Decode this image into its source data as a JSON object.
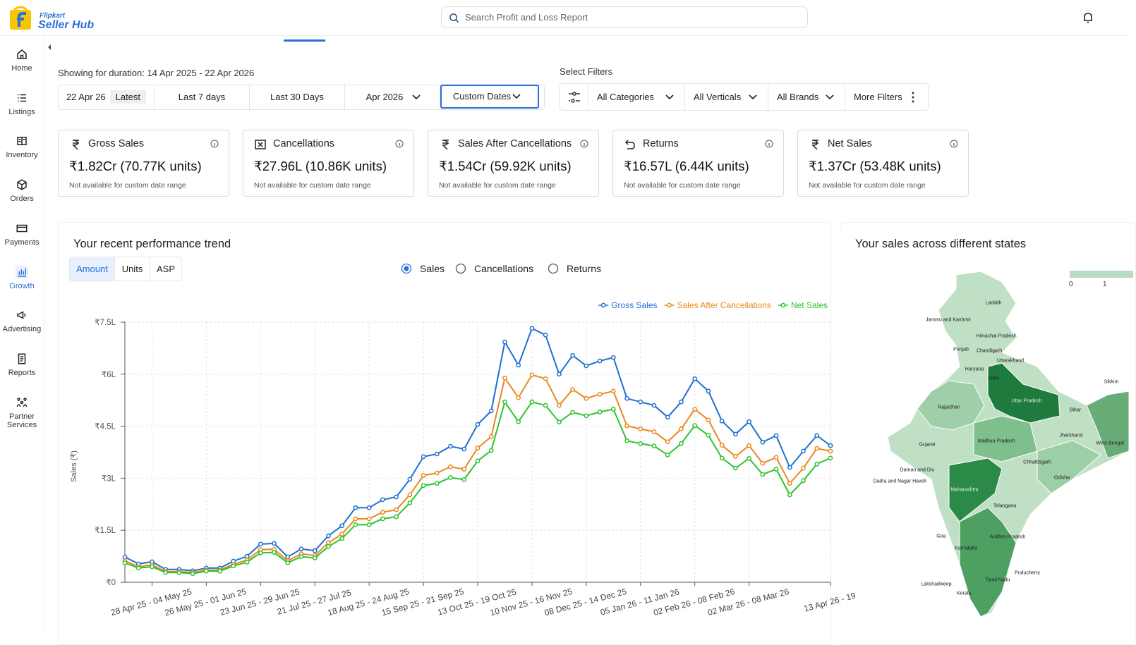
{
  "header": {
    "logo_top": "Flipkart",
    "logo_bottom": "Seller Hub",
    "search_placeholder": "Search Profit and Loss Report"
  },
  "sidebar": {
    "items": [
      "Home",
      "Listings",
      "Inventory",
      "Orders",
      "Payments",
      "Growth",
      "Advertising",
      "Reports",
      "Partner Services"
    ],
    "active": "Growth"
  },
  "duration": "Showing for duration: 14 Apr 2025 - 22 Apr 2026",
  "date_tabs": {
    "first": {
      "date": "22 Apr 26",
      "badge": "Latest"
    },
    "items": [
      "Last 7 days",
      "Last 30 Days",
      "Apr 2026",
      "Custom Dates"
    ],
    "active": "Custom Dates"
  },
  "filters": {
    "title": "Select Filters",
    "items": [
      "All Categories",
      "All Verticals",
      "All Brands",
      "More Filters"
    ]
  },
  "cards": [
    {
      "title": "Gross Sales",
      "value": "₹1.82Cr (70.77K units)",
      "note": "Not available for custom date range"
    },
    {
      "title": "Cancellations",
      "value": "₹27.96L (10.86K units)",
      "note": "Not available for custom date range"
    },
    {
      "title": "Sales After Cancellations",
      "value": "₹1.54Cr (59.92K units)",
      "note": "Not available for custom date range"
    },
    {
      "title": "Returns",
      "value": "₹16.57L (6.44K units)",
      "note": "Not available for custom date range"
    },
    {
      "title": "Net Sales",
      "value": "₹1.37Cr (53.48K units)",
      "note": "Not available for custom date range"
    }
  ],
  "trend": {
    "title": "Your recent performance trend",
    "toggles": [
      "Amount",
      "Units",
      "ASP"
    ],
    "active_toggle": "Amount",
    "radios": [
      "Sales",
      "Cancellations",
      "Returns"
    ],
    "selected_radio": "Sales"
  },
  "chart_data": {
    "type": "line",
    "y_label": "Sales (₹)",
    "categories": [
      null,
      null,
      "28 Apr 25 - 04 May 25",
      null,
      null,
      null,
      "26 May 25 - 01 Jun 25",
      null,
      null,
      null,
      "23 Jun 25 - 29 Jun 25",
      null,
      null,
      null,
      "21 Jul 25 - 27 Jul 25",
      null,
      null,
      null,
      "18 Aug 25 - 24 Aug 25",
      null,
      null,
      null,
      "15 Sep 25 - 21 Sep 25",
      null,
      null,
      null,
      "13 Oct 25 - 19 Oct 25",
      null,
      null,
      null,
      "10 Nov 25 - 16 Nov 25",
      null,
      null,
      null,
      "08 Dec 25 - 14 Dec 25",
      null,
      null,
      null,
      "05 Jan 26 - 11 Jan 26",
      null,
      null,
      null,
      "02 Feb 26 - 08 Feb 26",
      null,
      null,
      null,
      "02 Mar 26 - 08 Mar 26",
      null,
      null,
      null,
      null,
      null,
      "13 Apr 26 - 19"
    ],
    "series": [
      {
        "name": "Gross Sales",
        "color": "#1f6fd1",
        "values": [
          73000,
          53000,
          59000,
          37000,
          37000,
          33000,
          41000,
          41000,
          61000,
          75000,
          110000,
          112000,
          73000,
          96000,
          91000,
          134000,
          163000,
          215000,
          215000,
          238000,
          246000,
          297000,
          362000,
          370000,
          392000,
          384000,
          455000,
          494000,
          693000,
          626000,
          732000,
          713000,
          600000,
          654000,
          624000,
          638000,
          648000,
          530000,
          520000,
          510000,
          476000,
          520000,
          587000,
          551000,
          465000,
          427000,
          463000,
          404000,
          423000,
          331000,
          378000,
          423000,
          394000
        ]
      },
      {
        "name": "Sales After Cancellations",
        "color": "#e8891c",
        "values": [
          62000,
          45000,
          50000,
          31000,
          31000,
          28000,
          35000,
          35000,
          52000,
          64000,
          94000,
          95000,
          62000,
          82000,
          77000,
          114000,
          139000,
          183000,
          183000,
          202000,
          209000,
          252000,
          308000,
          315000,
          333000,
          326000,
          387000,
          420000,
          589000,
          532000,
          598000,
          587000,
          510000,
          556000,
          530000,
          542000,
          551000,
          451000,
          442000,
          434000,
          405000,
          442000,
          499000,
          468000,
          395000,
          363000,
          394000,
          343000,
          360000,
          285000,
          329000,
          386000,
          378000
        ]
      },
      {
        "name": "Net Sales",
        "color": "#2bc42b",
        "values": [
          56000,
          41000,
          45000,
          28000,
          28000,
          25000,
          32000,
          32000,
          47000,
          58000,
          85000,
          86000,
          56000,
          74000,
          70000,
          103000,
          126000,
          166000,
          166000,
          183000,
          189000,
          229000,
          279000,
          285000,
          302000,
          296000,
          350000,
          380000,
          520000,
          463000,
          520000,
          510000,
          462000,
          490000,
          480000,
          491000,
          499000,
          408000,
          400000,
          393000,
          367000,
          400000,
          452000,
          424000,
          358000,
          329000,
          357000,
          311000,
          326000,
          252000,
          293000,
          341000,
          358000
        ]
      }
    ],
    "ylim": [
      0,
      750000
    ],
    "yticks": [
      {
        "value": 0,
        "label": "₹0"
      },
      {
        "value": 150000,
        "label": "₹1.5L"
      },
      {
        "value": 300000,
        "label": "₹3L"
      },
      {
        "value": 450000,
        "label": "₹4.5L"
      },
      {
        "value": 600000,
        "label": "₹6L"
      },
      {
        "value": 750000,
        "label": "₹7.5L"
      }
    ],
    "grid": true,
    "legend": "top-right"
  },
  "map": {
    "title": "Your sales across different states",
    "legend": [
      "0",
      "1"
    ],
    "states": [
      "Ladakh",
      "Jammu and Kashmir",
      "Himachal Pradesh",
      "Punjab",
      "Chandigarh",
      "Uttarakhand",
      "Haryana",
      "Delhi",
      "Uttar Pradesh",
      "Bihar",
      "Sikkim",
      "Rajasthan",
      "Gujarat",
      "Jharkhand",
      "West Bengal",
      "Madhya Pradesh",
      "Chhattisgarh",
      "Daman and Diu",
      "Dadra and Nagar Haveli",
      "Odisha",
      "Maharashtra",
      "Telangana",
      "Goa",
      "Andhra Pradesh",
      "Karnataka",
      "Puducherry",
      "Lakshadweep",
      "Tamil Nadu",
      "Kerala"
    ]
  }
}
